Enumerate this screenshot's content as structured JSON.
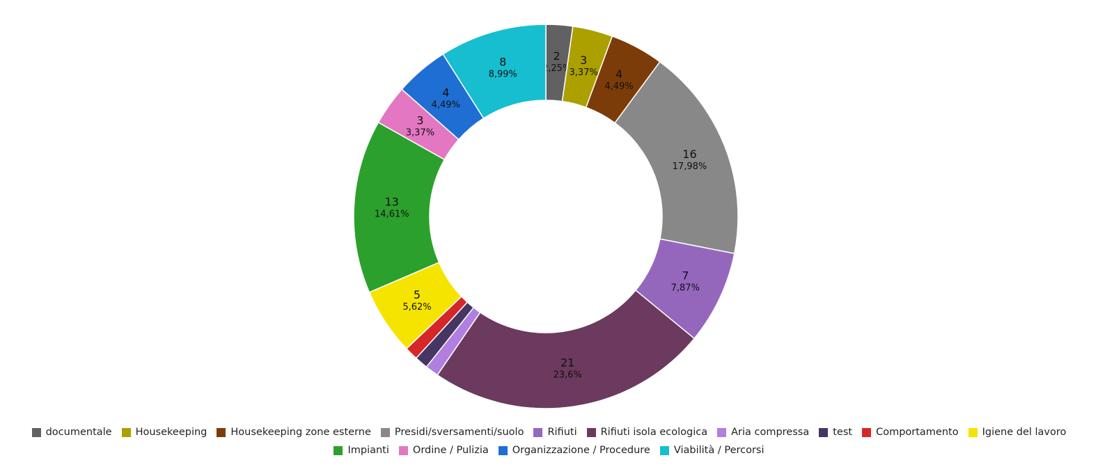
{
  "chart_data": {
    "type": "pie",
    "variant": "donut",
    "categories": [
      "documentale",
      "Housekeeping",
      "Housekeeping zone esterne",
      "Presidi/sversamenti/suolo",
      "Rifiuti",
      "Rifiuti isola ecologica",
      "Aria compressa",
      "test",
      "Comportamento",
      "Igiene del lavoro",
      "Impianti",
      "Ordine / Pulizia",
      "Organizzazione / Procedure",
      "Viabilità / Percorsi"
    ],
    "values": [
      2,
      3,
      4,
      16,
      7,
      21,
      1,
      1,
      1,
      5,
      13,
      3,
      4,
      8
    ],
    "percent_labels": [
      "2,25%",
      "3,37%",
      "4,49%",
      "17,98%",
      "7,87%",
      "23,6%",
      "",
      "",
      "",
      "5,62%",
      "14,61%",
      "3,37%",
      "4,49%",
      "8,99%"
    ],
    "value_labels_shown": [
      true,
      true,
      true,
      true,
      true,
      true,
      false,
      false,
      false,
      true,
      true,
      true,
      true,
      true
    ],
    "colors": [
      "#616161",
      "#aba000",
      "#7b3c0a",
      "#888888",
      "#9467bd",
      "#6b3a5e",
      "#b07fe0",
      "#463664",
      "#d62728",
      "#f5e400",
      "#2ca02c",
      "#e377c2",
      "#1f6ed4",
      "#17becf"
    ],
    "legend_position": "bottom",
    "start_angle": "top",
    "direction": "clockwise"
  }
}
